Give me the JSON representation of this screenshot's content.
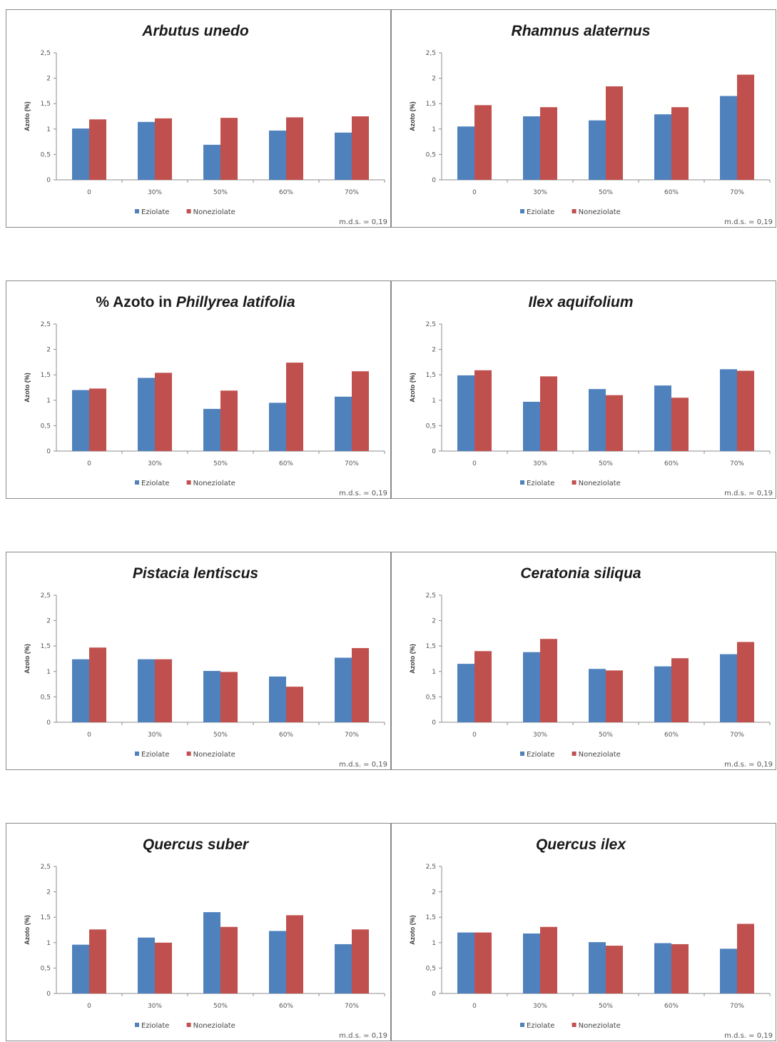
{
  "chart_data": [
    {
      "type": "bar",
      "title_prefix": "",
      "title": "Arbutus unedo",
      "ylabel": "Azoto (%)",
      "yticks": [
        "0",
        "0,5",
        "1",
        "1,5",
        "2",
        "2,5"
      ],
      "ylim": [
        0,
        2.5
      ],
      "categories": [
        "0",
        "30%",
        "50%",
        "60%",
        "70%"
      ],
      "series": [
        {
          "name": "Eziolate",
          "color": "#4f81bd",
          "values": [
            1.01,
            1.14,
            0.69,
            0.97,
            0.93
          ]
        },
        {
          "name": "Noneziolate",
          "color": "#c0504d",
          "values": [
            1.19,
            1.21,
            1.22,
            1.23,
            1.25
          ]
        }
      ],
      "note": "m.d.s. = 0,19",
      "legend_position": "bottom"
    },
    {
      "type": "bar",
      "title_prefix": "",
      "title": "Rhamnus alaternus",
      "ylabel": "Azoto (%)",
      "yticks": [
        "0",
        "0,5",
        "1",
        "1,5",
        "2",
        "2,5"
      ],
      "ylim": [
        0,
        2.5
      ],
      "categories": [
        "0",
        "30%",
        "50%",
        "60%",
        "70%"
      ],
      "series": [
        {
          "name": "Eziolate",
          "color": "#4f81bd",
          "values": [
            1.05,
            1.25,
            1.17,
            1.29,
            1.65
          ]
        },
        {
          "name": "Noneziolate",
          "color": "#c0504d",
          "values": [
            1.47,
            1.43,
            1.84,
            1.43,
            2.07
          ]
        }
      ],
      "note": "m.d.s. = 0,19",
      "legend_position": "bottom"
    },
    {
      "type": "bar",
      "title_prefix": "% Azoto in ",
      "title": "Phillyrea latifolia",
      "ylabel": "Azoto (%)",
      "yticks": [
        "0",
        "0,5",
        "1",
        "1,5",
        "2",
        "2,5"
      ],
      "ylim": [
        0,
        2.5
      ],
      "categories": [
        "0",
        "30%",
        "50%",
        "60%",
        "70%"
      ],
      "series": [
        {
          "name": "Eziolate",
          "color": "#4f81bd",
          "values": [
            1.2,
            1.44,
            0.83,
            0.95,
            1.07
          ]
        },
        {
          "name": "Noneziolate",
          "color": "#c0504d",
          "values": [
            1.23,
            1.54,
            1.19,
            1.74,
            1.57
          ]
        }
      ],
      "note": "m.d.s. = 0,19",
      "legend_position": "bottom"
    },
    {
      "type": "bar",
      "title_prefix": "",
      "title": "Ilex aquifolium",
      "ylabel": "Azoto (%)",
      "yticks": [
        "0",
        "0,5",
        "1",
        "1,5",
        "2",
        "2,5"
      ],
      "ylim": [
        0,
        2.5
      ],
      "categories": [
        "0",
        "30%",
        "50%",
        "60%",
        "70%"
      ],
      "series": [
        {
          "name": "Eziolate",
          "color": "#4f81bd",
          "values": [
            1.49,
            0.97,
            1.22,
            1.29,
            1.61
          ]
        },
        {
          "name": "Noneziolate",
          "color": "#c0504d",
          "values": [
            1.59,
            1.47,
            1.1,
            1.05,
            1.58
          ]
        }
      ],
      "note": "m.d.s. = 0,19",
      "legend_position": "bottom"
    },
    {
      "type": "bar",
      "title_prefix": "",
      "title": "Pistacia lentiscus",
      "ylabel": "Azoto (%)",
      "yticks": [
        "0",
        "0,5",
        "1",
        "1,5",
        "2",
        "2,5"
      ],
      "ylim": [
        0,
        2.5
      ],
      "categories": [
        "0",
        "30%",
        "50%",
        "60%",
        "70%"
      ],
      "series": [
        {
          "name": "Eziolate",
          "color": "#4f81bd",
          "values": [
            1.24,
            1.24,
            1.01,
            0.9,
            1.27
          ]
        },
        {
          "name": "Noneziolate",
          "color": "#c0504d",
          "values": [
            1.47,
            1.24,
            0.99,
            0.7,
            1.46
          ]
        }
      ],
      "note": "m.d.s. = 0,19",
      "legend_position": "bottom"
    },
    {
      "type": "bar",
      "title_prefix": "",
      "title": "Ceratonia siliqua",
      "ylabel": "Azoto (%)",
      "yticks": [
        "0",
        "0,5",
        "1",
        "1,5",
        "2",
        "2,5"
      ],
      "ylim": [
        0,
        2.5
      ],
      "categories": [
        "0",
        "30%",
        "50%",
        "60%",
        "70%"
      ],
      "series": [
        {
          "name": "Eziolate",
          "color": "#4f81bd",
          "values": [
            1.15,
            1.38,
            1.05,
            1.1,
            1.34
          ]
        },
        {
          "name": "Noneziolate",
          "color": "#c0504d",
          "values": [
            1.4,
            1.64,
            1.02,
            1.26,
            1.58
          ]
        }
      ],
      "note": "m.d.s. = 0,19",
      "legend_position": "bottom"
    },
    {
      "type": "bar",
      "title_prefix": "",
      "title": "Quercus suber",
      "ylabel": "Azoto (%)",
      "yticks": [
        "0",
        "0,5",
        "1",
        "1,5",
        "2",
        "2,5"
      ],
      "ylim": [
        0,
        2.5
      ],
      "categories": [
        "0",
        "30%",
        "50%",
        "60%",
        "70%"
      ],
      "series": [
        {
          "name": "Eziolate",
          "color": "#4f81bd",
          "values": [
            0.96,
            1.1,
            1.6,
            1.23,
            0.97
          ]
        },
        {
          "name": "Noneziolate",
          "color": "#c0504d",
          "values": [
            1.26,
            1.0,
            1.31,
            1.54,
            1.26
          ]
        }
      ],
      "note": "m.d.s. = 0,19",
      "legend_position": "bottom"
    },
    {
      "type": "bar",
      "title_prefix": "",
      "title": "Quercus ilex",
      "ylabel": "Azoto (%)",
      "yticks": [
        "0",
        "0,5",
        "1",
        "1,5",
        "2",
        "2,5"
      ],
      "ylim": [
        0,
        2.5
      ],
      "categories": [
        "0",
        "30%",
        "50%",
        "60%",
        "70%"
      ],
      "series": [
        {
          "name": "Eziolate",
          "color": "#4f81bd",
          "values": [
            1.2,
            1.18,
            1.01,
            0.99,
            0.88
          ]
        },
        {
          "name": "Noneziolate",
          "color": "#c0504d",
          "values": [
            1.2,
            1.31,
            0.94,
            0.97,
            1.37
          ]
        }
      ],
      "note": "m.d.s. = 0,19",
      "legend_position": "bottom"
    }
  ]
}
